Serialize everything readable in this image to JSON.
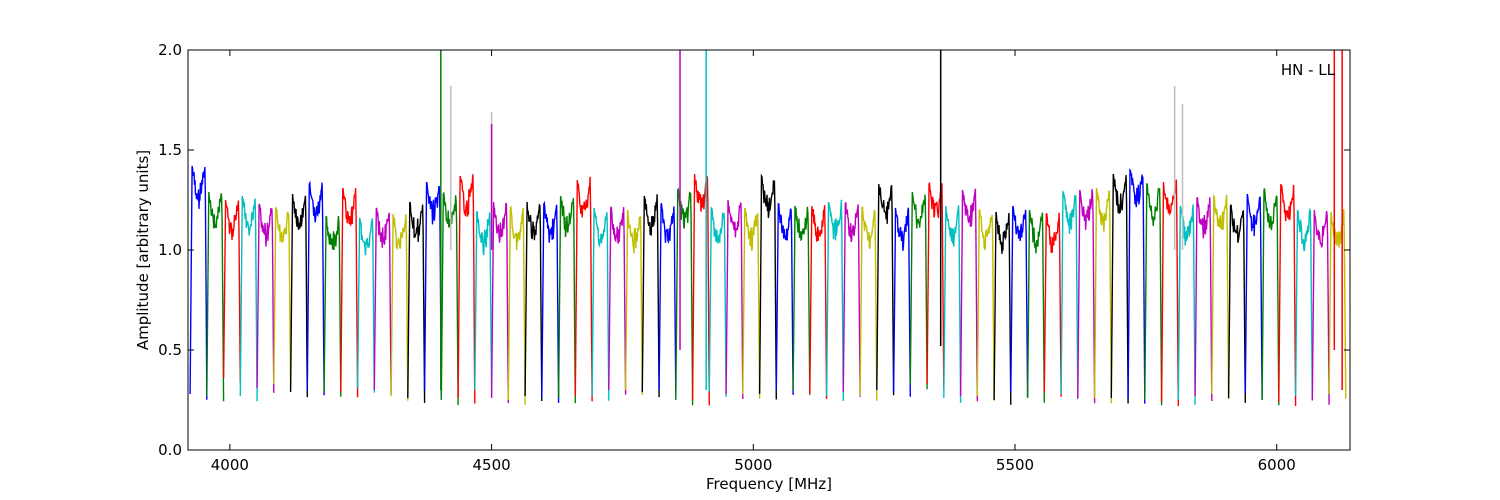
{
  "chart_data": {
    "type": "line",
    "title": "",
    "xlabel": "Frequency [MHz]",
    "ylabel": "Amplitude [arbitrary units]",
    "xlim": [
      3920,
      6140
    ],
    "ylim": [
      0.0,
      2.0
    ],
    "xticks": [
      4000,
      4500,
      5000,
      5500,
      6000
    ],
    "yticks": [
      0.0,
      0.5,
      1.0,
      1.5,
      2.0
    ],
    "xtick_labels": [
      "4000",
      "4500",
      "5000",
      "5500",
      "6000"
    ],
    "ytick_labels": [
      "0.0",
      "0.5",
      "1.0",
      "1.5",
      "2.0"
    ],
    "annotation": "HN - LL",
    "grid": false,
    "color_cycle": [
      "#0000ff",
      "#008000",
      "#ff0000",
      "#00bfbf",
      "#bf00bf",
      "#bfbf00",
      "#000000"
    ],
    "background_trace_color": "#bfbfbf",
    "band_start_mhz": 3924,
    "band_width_mhz": 32,
    "band_count": 69,
    "band_peak_amplitudes": [
      1.42,
      1.29,
      1.25,
      1.27,
      1.23,
      1.21,
      1.28,
      1.33,
      1.17,
      1.31,
      1.16,
      1.21,
      1.18,
      1.24,
      1.34,
      1.28,
      1.37,
      1.19,
      1.24,
      1.21,
      1.24,
      1.23,
      1.27,
      1.35,
      1.21,
      1.21,
      1.2,
      1.27,
      1.23,
      1.3,
      1.38,
      1.21,
      1.25,
      1.21,
      1.37,
      1.23,
      1.22,
      1.22,
      1.24,
      1.23,
      1.21,
      1.33,
      1.21,
      1.29,
      1.33,
      1.22,
      1.3,
      1.2,
      1.19,
      1.22,
      1.2,
      1.18,
      1.29,
      1.3,
      1.31,
      1.38,
      1.4,
      1.33,
      1.34,
      1.22,
      1.26,
      1.27,
      1.22,
      1.28,
      1.3,
      1.33,
      1.2,
      1.2,
      1.19
    ],
    "band_dip_amplitudes": [
      0.28,
      0.27,
      0.36,
      0.27,
      0.31,
      0.33,
      0.29,
      0.3,
      0.29,
      0.29,
      0.31,
      0.3,
      0.27,
      0.26,
      0.3,
      0.25,
      0.26,
      0.3,
      0.26,
      0.25,
      0.27,
      0.26,
      0.26,
      0.27,
      0.27,
      0.3,
      0.3,
      0.29,
      0.3,
      0.25,
      0.25,
      0.29,
      0.28,
      0.28,
      0.28,
      0.3,
      0.3,
      0.28,
      0.27,
      0.29,
      0.27,
      0.3,
      0.29,
      0.33,
      0.33,
      0.26,
      0.27,
      0.27,
      0.25,
      0.29,
      0.26,
      0.29,
      0.28,
      0.26,
      0.26,
      0.26,
      0.26,
      0.25,
      0.24,
      0.25,
      0.27,
      0.28,
      0.26,
      0.28,
      0.25,
      0.24,
      0.27,
      0.25,
      0.28
    ],
    "spikes": [
      {
        "x": 4403,
        "ymin": 0.3,
        "ymax": 2.0,
        "color": "#008000"
      },
      {
        "x": 4422,
        "ymin": 1.0,
        "ymax": 1.82,
        "color": "#bfbfbf"
      },
      {
        "x": 4500,
        "ymin": 1.0,
        "ymax": 1.69,
        "color": "#bfbfbf"
      },
      {
        "x": 4500,
        "ymin": 1.0,
        "ymax": 1.63,
        "color": "#bf00bf"
      },
      {
        "x": 4860,
        "ymin": 0.5,
        "ymax": 2.0,
        "color": "#bf00bf"
      },
      {
        "x": 4910,
        "ymin": 0.3,
        "ymax": 2.0,
        "color": "#00bfbf"
      },
      {
        "x": 5358,
        "ymin": 0.52,
        "ymax": 2.0,
        "color": "#000000"
      },
      {
        "x": 5805,
        "ymin": 1.0,
        "ymax": 1.82,
        "color": "#bfbfbf"
      },
      {
        "x": 5820,
        "ymin": 1.0,
        "ymax": 1.73,
        "color": "#bfbfbf"
      },
      {
        "x": 6110,
        "ymin": 0.5,
        "ymax": 2.0,
        "color": "#ff0000"
      },
      {
        "x": 6125,
        "ymin": 0.3,
        "ymax": 2.0,
        "color": "#ff0000"
      }
    ]
  }
}
